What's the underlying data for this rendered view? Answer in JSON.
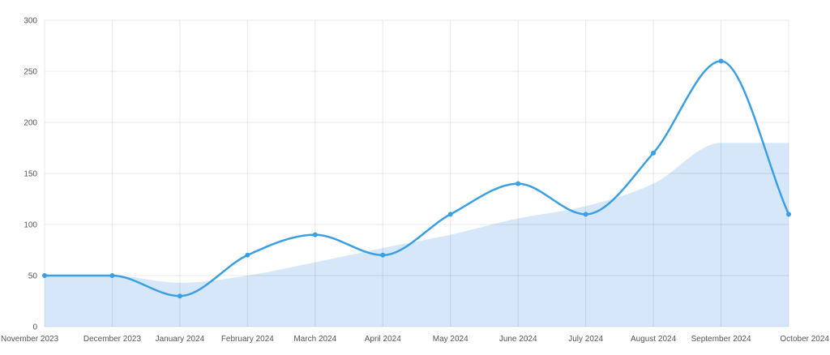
{
  "chart_data": {
    "type": "line",
    "title": "",
    "xlabel": "",
    "ylabel": "",
    "categories": [
      "November 2023",
      "December 2023",
      "January 2024",
      "February 2024",
      "March 2024",
      "April 2024",
      "May 2024",
      "June 2024",
      "July 2024",
      "August 2024",
      "September 2024",
      "October 2024"
    ],
    "ylim": [
      0,
      300
    ],
    "yticks": [
      0,
      50,
      100,
      150,
      200,
      250,
      300
    ],
    "grid": true,
    "legend": "none",
    "series": [
      {
        "type": "line",
        "color": "#3b9fe3",
        "values": [
          50,
          50,
          30,
          70,
          90,
          70,
          110,
          140,
          110,
          170,
          260,
          110
        ]
      },
      {
        "type": "area",
        "color": "#d6e7f9",
        "values": [
          50,
          50,
          43,
          50,
          63,
          77,
          90,
          106,
          118,
          140,
          180,
          180
        ]
      }
    ]
  }
}
